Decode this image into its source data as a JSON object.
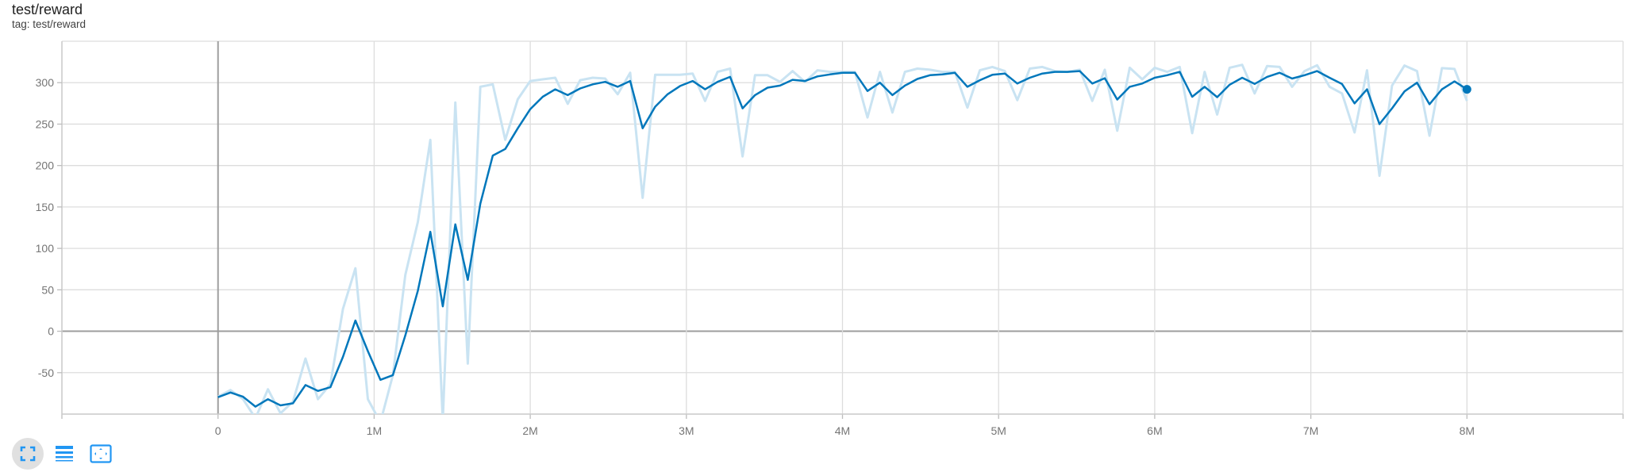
{
  "card": {
    "title": "test/reward",
    "subtitle": "tag: test/reward"
  },
  "toolbar": {
    "buttons": [
      {
        "icon": "fit-to-data-icon",
        "active": true
      },
      {
        "icon": "log-scale-list-icon",
        "active": false
      },
      {
        "icon": "fit-domain-icon",
        "active": false
      }
    ]
  },
  "colors": {
    "smoothed": "#0077bb",
    "raw": "#c9e3f2",
    "grid": "#dddddd",
    "zero_axis": "#9e9e9e",
    "icon": "#2196f3"
  },
  "chart_data": {
    "type": "line",
    "title": "test/reward",
    "xlim": [
      -1000000,
      9000000
    ],
    "ylim": [
      -100,
      350
    ],
    "x_ticks": [
      0,
      1000000,
      2000000,
      3000000,
      4000000,
      5000000,
      6000000,
      7000000,
      8000000
    ],
    "x_tick_labels": [
      "0",
      "1M",
      "2M",
      "3M",
      "4M",
      "5M",
      "6M",
      "7M",
      "8M"
    ],
    "y_ticks": [
      -50,
      0,
      50,
      100,
      150,
      200,
      250,
      300
    ],
    "y_tick_labels": [
      "-50",
      "0",
      "50",
      "100",
      "150",
      "200",
      "250",
      "300"
    ],
    "grid": true,
    "x": [
      0,
      80000,
      160000,
      240000,
      320000,
      400000,
      480000,
      560000,
      640000,
      720000,
      800000,
      880000,
      960000,
      1040000,
      1120000,
      1200000,
      1280000,
      1360000,
      1440000,
      1520000,
      1600000,
      1680000,
      1760000,
      1840000,
      1920000,
      2000000,
      2080000,
      2160000,
      2240000,
      2320000,
      2400000,
      2480000,
      2560000,
      2640000,
      2720000,
      2800000,
      2880000,
      2960000,
      3040000,
      3120000,
      3200000,
      3280000,
      3360000,
      3440000,
      3520000,
      3600000,
      3680000,
      3760000,
      3840000,
      3920000,
      4000000,
      4080000,
      4160000,
      4240000,
      4320000,
      4400000,
      4480000,
      4560000,
      4640000,
      4720000,
      4800000,
      4880000,
      4960000,
      5040000,
      5120000,
      5200000,
      5280000,
      5360000,
      5440000,
      5520000,
      5600000,
      5680000,
      5760000,
      5840000,
      5920000,
      6000000,
      6080000,
      6160000,
      6240000,
      6320000,
      6400000,
      6480000,
      6560000,
      6640000,
      6720000,
      6800000,
      6880000,
      6960000,
      7040000,
      7120000,
      7200000,
      7280000,
      7360000,
      7440000,
      7520000,
      7600000,
      7680000,
      7760000,
      7840000,
      7920000,
      8000000
    ],
    "series": [
      {
        "values": [
          -79,
          -71,
          -82,
          -105,
          -70,
          -99,
          -85,
          -33,
          -82,
          -64,
          27,
          76,
          -82,
          -110,
          -53,
          68,
          132,
          231,
          -108,
          276,
          -39,
          295,
          298,
          231,
          280,
          302,
          304,
          306,
          274.5,
          303,
          306,
          305,
          286,
          312,
          161,
          309.5,
          309.5,
          309.5,
          311,
          278,
          313,
          317,
          211,
          309,
          309,
          301,
          314,
          301,
          315,
          313,
          313,
          313,
          258,
          313,
          264,
          313,
          317,
          315.6,
          313,
          313,
          270,
          315,
          319,
          314,
          279,
          317,
          319,
          314,
          313,
          315.6,
          278,
          315.6,
          242,
          318,
          304,
          318,
          313,
          319,
          239,
          313,
          261.5,
          318,
          321.6,
          287,
          320,
          319,
          295,
          314,
          321,
          295,
          287,
          240,
          315,
          187.6,
          296.5,
          320.7,
          314,
          236,
          317.5,
          316.6,
          278
        ]
      },
      {
        "values": [
          -79.6,
          -74,
          -79,
          -91,
          -82,
          -89.5,
          -87,
          -65,
          -72,
          -67.5,
          -31,
          13,
          -24,
          -58.6,
          -53,
          -5,
          49,
          120,
          30,
          129,
          62,
          154,
          212,
          220,
          245,
          268,
          283,
          292,
          285,
          293,
          298,
          301,
          295,
          302,
          245,
          271,
          286,
          296,
          302,
          292,
          301,
          307,
          269,
          285,
          294,
          296.5,
          303.5,
          302,
          307.6,
          310,
          312,
          312,
          290,
          300,
          285,
          296.5,
          304.5,
          309,
          310,
          312,
          295,
          303,
          309.5,
          311,
          299,
          306,
          311,
          313,
          313,
          314,
          299,
          305.4,
          279.6,
          295,
          299,
          306,
          309,
          313,
          283,
          295,
          282.5,
          297.5,
          306,
          298.5,
          307,
          312,
          305,
          309,
          314,
          306,
          298.4,
          275,
          292,
          250,
          269,
          289.5,
          300,
          274,
          292,
          301.6,
          292
        ]
      }
    ]
  }
}
